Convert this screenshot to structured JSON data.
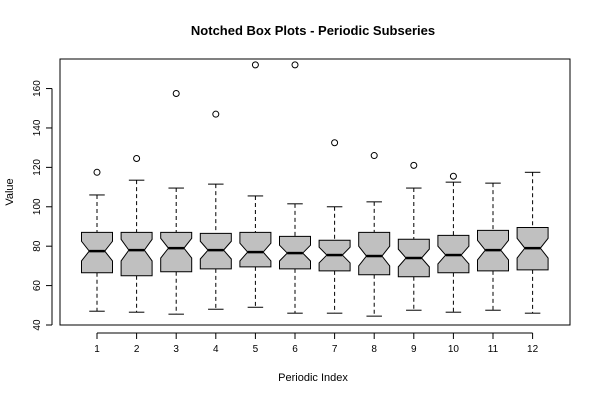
{
  "chart_data": {
    "type": "boxplot",
    "title": "Notched Box Plots - Periodic Subseries",
    "xlabel": "Periodic Index",
    "ylabel": "Value",
    "ylim": [
      40,
      175
    ],
    "yticks": [
      40,
      60,
      80,
      100,
      120,
      140,
      160
    ],
    "categories": [
      "1",
      "2",
      "3",
      "4",
      "5",
      "6",
      "7",
      "8",
      "9",
      "10",
      "11",
      "12"
    ],
    "box_fill": "#c0c0c0",
    "boxes": [
      {
        "whisker_low": 47.0,
        "q1": 66.5,
        "median": 77.5,
        "q3": 87.0,
        "whisker_high": 106.0,
        "notch_low": 72.5,
        "notch_high": 82.5,
        "outliers": [
          117.5
        ]
      },
      {
        "whisker_low": 46.5,
        "q1": 65.0,
        "median": 78.0,
        "q3": 87.0,
        "whisker_high": 113.5,
        "notch_low": 72.5,
        "notch_high": 83.5,
        "outliers": [
          124.5
        ]
      },
      {
        "whisker_low": 45.5,
        "q1": 67.0,
        "median": 79.0,
        "q3": 87.0,
        "whisker_high": 109.5,
        "notch_low": 74.0,
        "notch_high": 84.0,
        "outliers": [
          157.5
        ]
      },
      {
        "whisker_low": 48.0,
        "q1": 68.5,
        "median": 78.0,
        "q3": 86.5,
        "whisker_high": 111.5,
        "notch_low": 73.5,
        "notch_high": 82.5,
        "outliers": [
          147.0
        ]
      },
      {
        "whisker_low": 49.0,
        "q1": 69.5,
        "median": 77.0,
        "q3": 87.0,
        "whisker_high": 105.5,
        "notch_low": 72.5,
        "notch_high": 81.5,
        "outliers": [
          172.0
        ]
      },
      {
        "whisker_low": 46.0,
        "q1": 68.5,
        "median": 76.5,
        "q3": 85.0,
        "whisker_high": 101.5,
        "notch_low": 72.5,
        "notch_high": 80.5,
        "outliers": [
          172.0
        ]
      },
      {
        "whisker_low": 46.0,
        "q1": 67.5,
        "median": 75.5,
        "q3": 83.0,
        "whisker_high": 100.0,
        "notch_low": 71.5,
        "notch_high": 79.5,
        "outliers": [
          132.5
        ]
      },
      {
        "whisker_low": 44.5,
        "q1": 65.5,
        "median": 75.0,
        "q3": 87.0,
        "whisker_high": 102.5,
        "notch_low": 70.0,
        "notch_high": 80.0,
        "outliers": [
          126.0
        ]
      },
      {
        "whisker_low": 47.5,
        "q1": 64.5,
        "median": 74.0,
        "q3": 83.5,
        "whisker_high": 109.5,
        "notch_low": 69.5,
        "notch_high": 78.5,
        "outliers": [
          121.0
        ]
      },
      {
        "whisker_low": 46.5,
        "q1": 66.5,
        "median": 75.5,
        "q3": 85.5,
        "whisker_high": 112.5,
        "notch_low": 71.0,
        "notch_high": 80.0,
        "outliers": [
          115.5
        ]
      },
      {
        "whisker_low": 47.5,
        "q1": 67.5,
        "median": 78.0,
        "q3": 88.0,
        "whisker_high": 112.0,
        "notch_low": 73.0,
        "notch_high": 83.0,
        "outliers": []
      },
      {
        "whisker_low": 46.0,
        "q1": 68.0,
        "median": 79.0,
        "q3": 89.5,
        "whisker_high": 117.5,
        "notch_low": 74.0,
        "notch_high": 84.0,
        "outliers": []
      }
    ]
  }
}
